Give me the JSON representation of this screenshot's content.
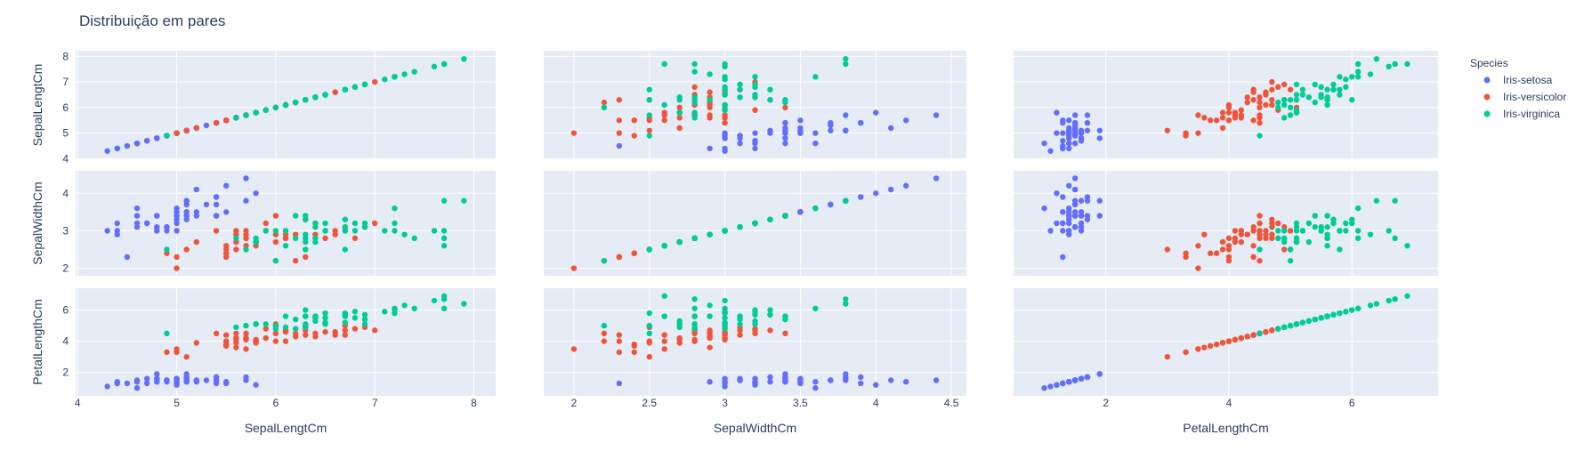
{
  "chart_data": {
    "type": "scatter",
    "title": "Distribuição em pares",
    "dimensions": [
      "SepalLengtCm",
      "SepalWidthCm",
      "PetalLengthCm"
    ],
    "axis_ranges": {
      "SepalLengtCm": [
        3.98,
        8.22
      ],
      "SepalWidthCm": [
        1.8,
        4.6
      ],
      "PetalLengthCm": [
        0.5,
        7.4
      ]
    },
    "x_ticks": {
      "SepalLengtCm": [
        4,
        5,
        6,
        7,
        8
      ],
      "SepalWidthCm": [
        2,
        2.5,
        3,
        3.5,
        4,
        4.5
      ],
      "PetalLengthCm": [
        2,
        4,
        6
      ]
    },
    "y_ticks": {
      "SepalLengtCm": [
        4,
        5,
        6,
        7,
        8
      ],
      "SepalWidthCm": [
        2,
        3,
        4
      ],
      "PetalLengthCm": [
        2,
        4,
        6
      ]
    },
    "legend": {
      "title": "Species",
      "position": "right"
    },
    "grid": true,
    "series": [
      {
        "name": "Iris-setosa",
        "color": "#636efa",
        "points": [
          [
            5.1,
            3.5,
            1.4
          ],
          [
            4.9,
            3.0,
            1.4
          ],
          [
            4.7,
            3.2,
            1.3
          ],
          [
            4.6,
            3.1,
            1.5
          ],
          [
            5.0,
            3.6,
            1.4
          ],
          [
            5.4,
            3.9,
            1.7
          ],
          [
            4.6,
            3.4,
            1.4
          ],
          [
            5.0,
            3.4,
            1.5
          ],
          [
            4.4,
            2.9,
            1.4
          ],
          [
            4.9,
            3.1,
            1.5
          ],
          [
            5.4,
            3.7,
            1.5
          ],
          [
            4.8,
            3.4,
            1.6
          ],
          [
            4.8,
            3.0,
            1.4
          ],
          [
            4.3,
            3.0,
            1.1
          ],
          [
            5.8,
            4.0,
            1.2
          ],
          [
            5.7,
            4.4,
            1.5
          ],
          [
            5.4,
            3.9,
            1.3
          ],
          [
            5.1,
            3.5,
            1.4
          ],
          [
            5.7,
            3.8,
            1.7
          ],
          [
            5.1,
            3.8,
            1.5
          ],
          [
            5.4,
            3.4,
            1.7
          ],
          [
            5.1,
            3.7,
            1.5
          ],
          [
            4.6,
            3.6,
            1.0
          ],
          [
            5.1,
            3.3,
            1.7
          ],
          [
            4.8,
            3.4,
            1.9
          ],
          [
            5.0,
            3.0,
            1.6
          ],
          [
            5.0,
            3.4,
            1.6
          ],
          [
            5.2,
            3.5,
            1.5
          ],
          [
            5.2,
            3.4,
            1.4
          ],
          [
            4.7,
            3.2,
            1.6
          ],
          [
            4.8,
            3.1,
            1.6
          ],
          [
            5.4,
            3.4,
            1.5
          ],
          [
            5.2,
            4.1,
            1.5
          ],
          [
            5.5,
            4.2,
            1.4
          ],
          [
            4.9,
            3.1,
            1.5
          ],
          [
            5.0,
            3.2,
            1.2
          ],
          [
            5.5,
            3.5,
            1.3
          ],
          [
            4.9,
            3.1,
            1.5
          ],
          [
            4.4,
            3.0,
            1.3
          ],
          [
            5.1,
            3.4,
            1.5
          ],
          [
            5.0,
            3.5,
            1.3
          ],
          [
            4.5,
            2.3,
            1.3
          ],
          [
            4.4,
            3.2,
            1.3
          ],
          [
            5.0,
            3.5,
            1.6
          ],
          [
            5.1,
            3.8,
            1.9
          ],
          [
            4.8,
            3.0,
            1.4
          ],
          [
            5.1,
            3.8,
            1.6
          ],
          [
            4.6,
            3.2,
            1.4
          ],
          [
            5.3,
            3.7,
            1.5
          ],
          [
            5.0,
            3.3,
            1.4
          ]
        ]
      },
      {
        "name": "Iris-versicolor",
        "color": "#ef553b",
        "points": [
          [
            7.0,
            3.2,
            4.7
          ],
          [
            6.4,
            3.2,
            4.5
          ],
          [
            6.9,
            3.1,
            4.9
          ],
          [
            5.5,
            2.3,
            4.0
          ],
          [
            6.5,
            2.8,
            4.6
          ],
          [
            5.7,
            2.8,
            4.5
          ],
          [
            6.3,
            3.3,
            4.7
          ],
          [
            4.9,
            2.4,
            3.3
          ],
          [
            6.6,
            2.9,
            4.6
          ],
          [
            5.2,
            2.7,
            3.9
          ],
          [
            5.0,
            2.0,
            3.5
          ],
          [
            5.9,
            3.0,
            4.2
          ],
          [
            6.0,
            2.2,
            4.0
          ],
          [
            6.1,
            2.9,
            4.7
          ],
          [
            5.6,
            2.9,
            3.6
          ],
          [
            6.7,
            3.1,
            4.4
          ],
          [
            5.6,
            3.0,
            4.5
          ],
          [
            5.8,
            2.7,
            4.1
          ],
          [
            6.2,
            2.2,
            4.5
          ],
          [
            5.6,
            2.5,
            3.9
          ],
          [
            5.9,
            3.2,
            4.8
          ],
          [
            6.1,
            2.8,
            4.0
          ],
          [
            6.3,
            2.5,
            4.9
          ],
          [
            6.1,
            2.8,
            4.7
          ],
          [
            6.4,
            2.9,
            4.3
          ],
          [
            6.6,
            3.0,
            4.4
          ],
          [
            6.8,
            2.8,
            4.8
          ],
          [
            6.7,
            3.0,
            5.0
          ],
          [
            6.0,
            2.9,
            4.5
          ],
          [
            5.7,
            2.6,
            3.5
          ],
          [
            5.5,
            2.4,
            3.8
          ],
          [
            5.5,
            2.4,
            3.7
          ],
          [
            5.8,
            2.7,
            3.9
          ],
          [
            6.0,
            2.7,
            5.1
          ],
          [
            5.4,
            3.0,
            4.5
          ],
          [
            6.0,
            3.4,
            4.5
          ],
          [
            6.7,
            3.1,
            4.7
          ],
          [
            6.3,
            2.3,
            4.4
          ],
          [
            5.6,
            3.0,
            4.1
          ],
          [
            5.5,
            2.5,
            4.0
          ],
          [
            5.5,
            2.6,
            4.4
          ],
          [
            6.1,
            3.0,
            4.6
          ],
          [
            5.8,
            2.6,
            4.0
          ],
          [
            5.0,
            2.3,
            3.3
          ],
          [
            5.6,
            2.7,
            4.2
          ],
          [
            5.7,
            3.0,
            4.2
          ],
          [
            5.7,
            2.9,
            4.2
          ],
          [
            6.2,
            2.9,
            4.3
          ],
          [
            5.1,
            2.5,
            3.0
          ],
          [
            5.7,
            2.8,
            4.1
          ]
        ]
      },
      {
        "name": "Iris-virginica",
        "color": "#00cc96",
        "points": [
          [
            6.3,
            3.3,
            6.0
          ],
          [
            5.8,
            2.7,
            5.1
          ],
          [
            7.1,
            3.0,
            5.9
          ],
          [
            6.3,
            2.9,
            5.6
          ],
          [
            6.5,
            3.0,
            5.8
          ],
          [
            7.6,
            3.0,
            6.6
          ],
          [
            4.9,
            2.5,
            4.5
          ],
          [
            7.3,
            2.9,
            6.3
          ],
          [
            6.7,
            2.5,
            5.8
          ],
          [
            7.2,
            3.6,
            6.1
          ],
          [
            6.5,
            3.2,
            5.1
          ],
          [
            6.4,
            2.7,
            5.3
          ],
          [
            6.8,
            3.0,
            5.5
          ],
          [
            5.7,
            2.5,
            5.0
          ],
          [
            5.8,
            2.8,
            5.1
          ],
          [
            6.4,
            3.2,
            5.3
          ],
          [
            6.5,
            3.0,
            5.5
          ],
          [
            7.7,
            3.8,
            6.7
          ],
          [
            7.7,
            2.6,
            6.9
          ],
          [
            6.0,
            2.2,
            5.0
          ],
          [
            6.9,
            3.2,
            5.7
          ],
          [
            5.6,
            2.8,
            4.9
          ],
          [
            7.7,
            2.8,
            6.7
          ],
          [
            6.3,
            2.7,
            4.9
          ],
          [
            6.7,
            3.3,
            5.7
          ],
          [
            7.2,
            3.2,
            6.0
          ],
          [
            6.2,
            2.8,
            4.8
          ],
          [
            6.1,
            3.0,
            4.9
          ],
          [
            6.4,
            2.8,
            5.6
          ],
          [
            7.2,
            3.0,
            5.8
          ],
          [
            7.4,
            2.8,
            6.1
          ],
          [
            7.9,
            3.8,
            6.4
          ],
          [
            6.4,
            2.8,
            5.6
          ],
          [
            6.3,
            2.8,
            5.1
          ],
          [
            6.1,
            2.6,
            5.6
          ],
          [
            7.7,
            3.0,
            6.1
          ],
          [
            6.3,
            3.4,
            5.6
          ],
          [
            6.4,
            3.1,
            5.5
          ],
          [
            6.0,
            3.0,
            4.8
          ],
          [
            6.9,
            3.1,
            5.4
          ],
          [
            6.7,
            3.1,
            5.6
          ],
          [
            6.9,
            3.1,
            5.1
          ],
          [
            5.8,
            2.7,
            5.1
          ],
          [
            6.8,
            3.2,
            5.9
          ],
          [
            6.7,
            3.3,
            5.7
          ],
          [
            6.7,
            3.0,
            5.2
          ],
          [
            6.3,
            2.5,
            5.0
          ],
          [
            6.5,
            3.0,
            5.2
          ],
          [
            6.2,
            3.4,
            5.4
          ],
          [
            5.9,
            3.0,
            5.1
          ]
        ]
      }
    ]
  }
}
